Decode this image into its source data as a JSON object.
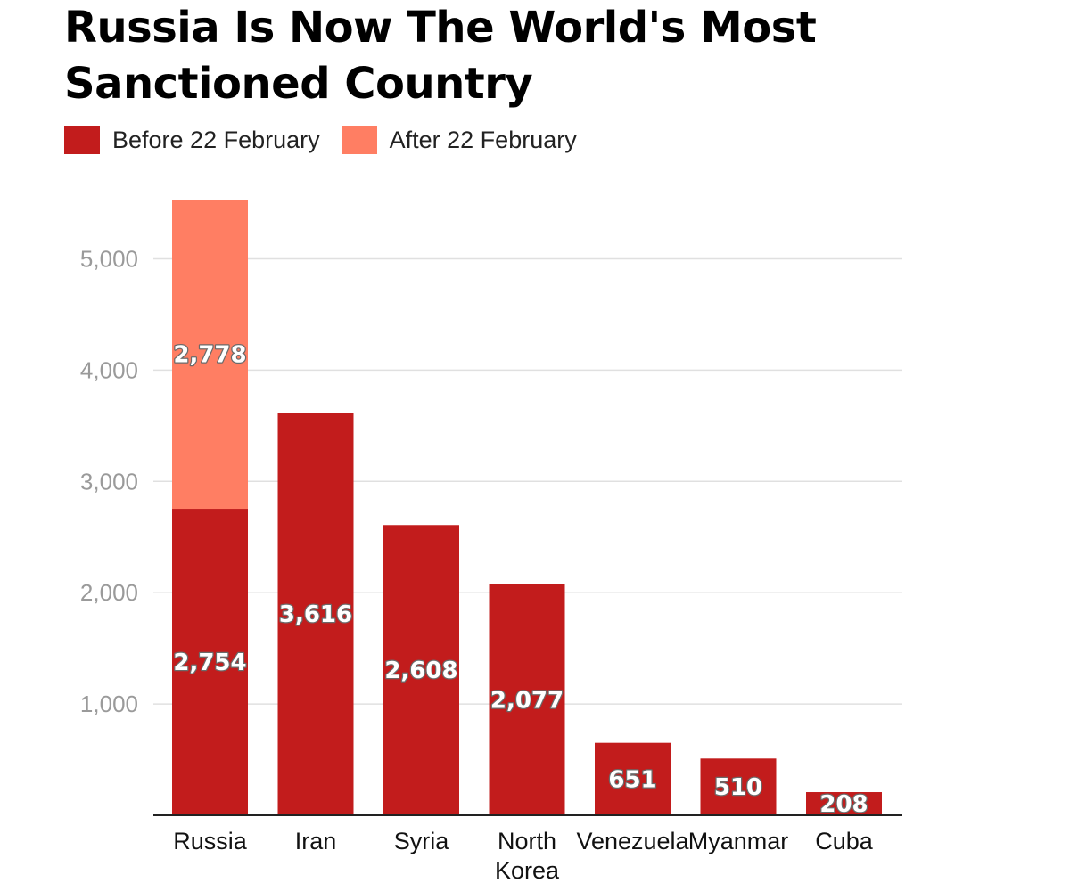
{
  "title": "Russia Is Now The World's Most Sanctioned Country",
  "colors": {
    "before": "#c21c1c",
    "after": "#ff7e63",
    "grid": "#e0e0e0",
    "axis": "#222222",
    "tick_text": "#9a9a9a"
  },
  "legend": [
    {
      "label": "Before 22 February",
      "color": "#c21c1c"
    },
    {
      "label": "After 22 February",
      "color": "#ff7e63"
    }
  ],
  "chart_data": {
    "type": "bar",
    "stacked": true,
    "title": "Russia Is Now The World's Most Sanctioned Country",
    "categories": [
      "Russia",
      "Iran",
      "Syria",
      "North Korea",
      "Venezuela",
      "Myanmar",
      "Cuba"
    ],
    "series": [
      {
        "name": "Before 22 February",
        "values": [
          2754,
          3616,
          2608,
          2077,
          651,
          510,
          208
        ]
      },
      {
        "name": "After 22 February",
        "values": [
          2778,
          0,
          0,
          0,
          0,
          0,
          0
        ]
      }
    ],
    "value_labels": {
      "Before 22 February": [
        "2,754",
        "3,616",
        "2,608",
        "2,077",
        "651",
        "510",
        "208"
      ],
      "After 22 February": [
        "2,778",
        "",
        "",
        "",
        "",
        "",
        ""
      ]
    },
    "yticks": [
      1000,
      2000,
      3000,
      4000,
      5000
    ],
    "ytick_labels": [
      "1,000",
      "2,000",
      "3,000",
      "4,000",
      "5,000"
    ],
    "ylim": [
      0,
      6000
    ],
    "grid": true,
    "legend_position": "top-left",
    "xlabel": "",
    "ylabel": ""
  }
}
